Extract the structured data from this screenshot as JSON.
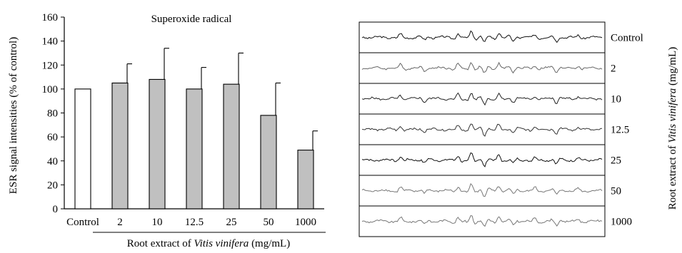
{
  "chart_data": {
    "type": "bar",
    "title": "Superoxide radical",
    "ylabel": "ESR signal intensities (% of control)",
    "xlabel": {
      "prefix": "Root extract of ",
      "italic": "Vitis vinifera",
      "suffix": " (mg/mL)"
    },
    "ylim": [
      0,
      160
    ],
    "yticks": [
      "0",
      "20",
      "40",
      "60",
      "80",
      "100",
      "120",
      "140",
      "160"
    ],
    "categories": [
      "Control",
      "2",
      "10",
      "12.5",
      "25",
      "50",
      "1000"
    ],
    "values": [
      100,
      105,
      108,
      100,
      104,
      78,
      49
    ],
    "errors": [
      0,
      16,
      26,
      18,
      26,
      27,
      16
    ],
    "colors": {
      "control": "#ffffff",
      "treatment": "#c0c0c0",
      "stroke": "#000000"
    },
    "grid": false,
    "legend": "none"
  },
  "esr_panel": {
    "labels": [
      "Control",
      "2",
      "10",
      "12.5",
      "25",
      "50",
      "1000"
    ],
    "side_label": {
      "prefix": "Root extract of ",
      "italic": "Vitis vinifera",
      "suffix": " (mg/mL)"
    },
    "trace_colors": [
      "#111111",
      "#666666",
      "#222222",
      "#333333",
      "#111111",
      "#777777",
      "#777777"
    ]
  }
}
